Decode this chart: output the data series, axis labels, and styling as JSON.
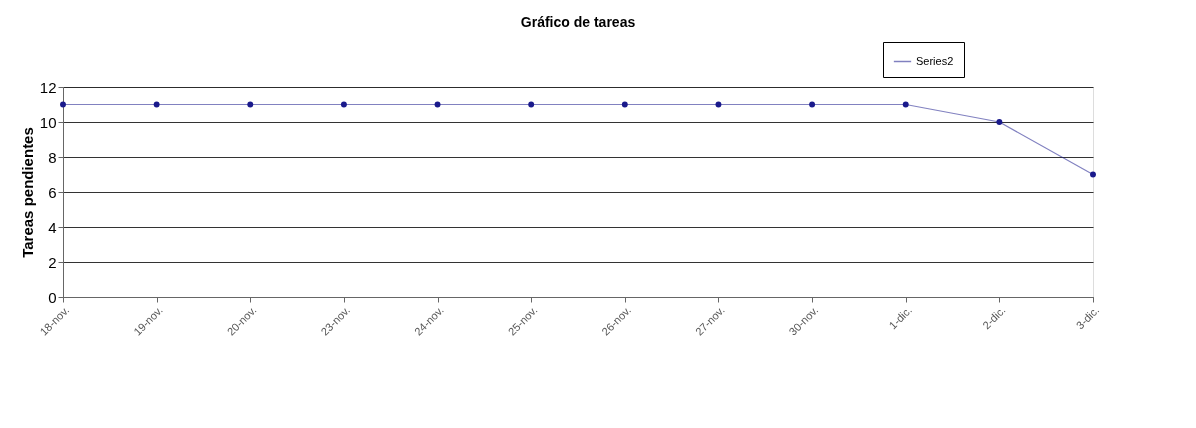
{
  "chart_data": {
    "type": "line",
    "title": "Gráfico de tareas",
    "ylabel": "Tareas pendientes",
    "categories": [
      "18-nov.",
      "19-nov.",
      "20-nov.",
      "23-nov.",
      "24-nov.",
      "25-nov.",
      "26-nov.",
      "27-nov.",
      "30-nov.",
      "1-dic.",
      "2-dic.",
      "3-dic."
    ],
    "series": [
      {
        "name": "Series2",
        "color": "#1a1a8c",
        "values": [
          11,
          11,
          11,
          11,
          11,
          11,
          11,
          11,
          11,
          11,
          10,
          7
        ]
      }
    ],
    "ylim": [
      0,
      12
    ],
    "yticks": [
      0,
      2,
      4,
      6,
      8,
      10,
      12
    ],
    "grid": "y",
    "legend": "top right",
    "marker": "circle",
    "line_style": "solid"
  }
}
